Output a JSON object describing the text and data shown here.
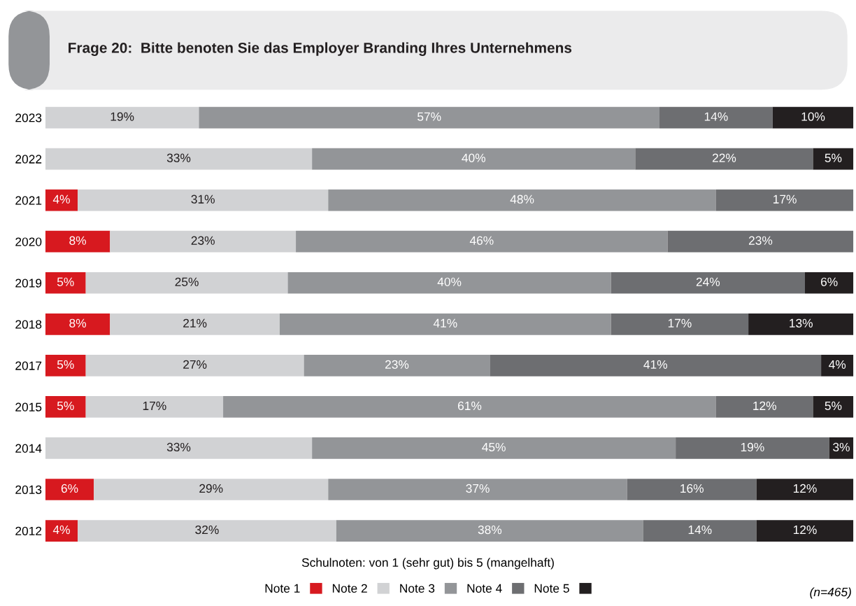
{
  "chart_data": {
    "type": "bar",
    "orientation": "horizontal",
    "stacked": true,
    "title": "Frage 20:  Bitte benoten Sie das Employer Branding Ihres Unternehmens",
    "categories": [
      "2023",
      "2022",
      "2021",
      "2020",
      "2019",
      "2018",
      "2017",
      "2015",
      "2014",
      "2013",
      "2012"
    ],
    "xlim": [
      0,
      100
    ],
    "tick_labels": "y",
    "grid": false,
    "legend": "bottom",
    "series": [
      {
        "name": "Note 1",
        "color": "#d7191f",
        "values": [
          null,
          null,
          4,
          8,
          5,
          8,
          5,
          5,
          null,
          6,
          4
        ],
        "value_labels": [
          null,
          null,
          "4%",
          "8%",
          "5%",
          "8%",
          "5%",
          "5%",
          null,
          "6%",
          "4%"
        ]
      },
      {
        "name": "Note 2",
        "color": "#d1d2d4",
        "values": [
          19,
          33,
          31,
          23,
          25,
          21,
          27,
          17,
          33,
          29,
          32
        ],
        "value_labels": [
          "19%",
          "33%",
          "31%",
          "23%",
          "25%",
          "21%",
          "27%",
          "17%",
          "33%",
          "29%",
          "32%"
        ]
      },
      {
        "name": "Note 3",
        "color": "#939598",
        "values": [
          57,
          40,
          48,
          46,
          40,
          41,
          23,
          61,
          45,
          37,
          38
        ],
        "value_labels": [
          "57%",
          "40%",
          "48%",
          "46%",
          "40%",
          "41%",
          "23%",
          "61%",
          "45%",
          "37%",
          "38%"
        ]
      },
      {
        "name": "Note 4",
        "color": "#6d6e71",
        "values": [
          14,
          22,
          17,
          23,
          24,
          17,
          41,
          12,
          19,
          16,
          14
        ],
        "value_labels": [
          "14%",
          "22%",
          "17%",
          "23%",
          "24%",
          "17%",
          "41%",
          "12%",
          "19%",
          "16%",
          "14%"
        ]
      },
      {
        "name": "Note 5",
        "color": "#231f20",
        "values": [
          10,
          5,
          null,
          null,
          6,
          13,
          4,
          5,
          3,
          12,
          12
        ],
        "value_labels": [
          "10%",
          "5%",
          null,
          null,
          "6%",
          "13%",
          "4%",
          "5%",
          "3%",
          "12%",
          "12%"
        ]
      }
    ],
    "annotations": [
      "Schulnoten: von 1 (sehr gut) bis 5 (mangelhaft)",
      "(n=465)"
    ]
  }
}
